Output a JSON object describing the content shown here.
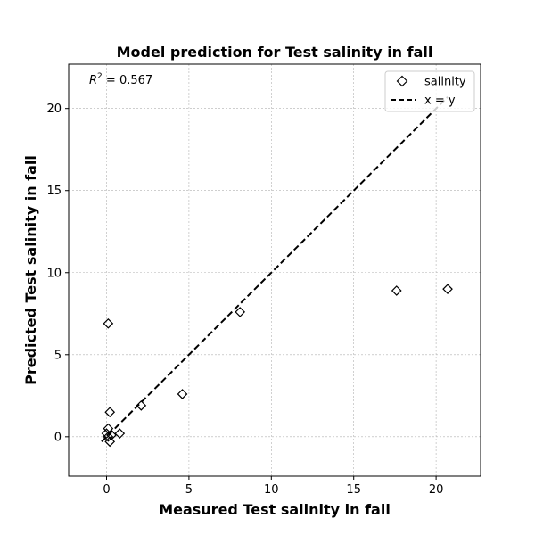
{
  "chart_data": {
    "type": "scatter",
    "title": "Model prediction for Test salinity in fall",
    "xlabel": "Measured Test salinity in fall",
    "ylabel": "Predicted Test salinity in fall",
    "xlim": [
      -2.3,
      22.7
    ],
    "ylim": [
      -2.4,
      22.7
    ],
    "xticks": [
      0,
      5,
      10,
      15,
      20
    ],
    "yticks": [
      0,
      5,
      10,
      15,
      20
    ],
    "grid": true,
    "legend_position": "top-right",
    "annotation": {
      "prefix": "R",
      "superscript": "2",
      "suffix": " = 0.567"
    },
    "series": [
      {
        "name": "salinity",
        "marker": "diamond",
        "color": "#000000",
        "points": [
          {
            "x": 0.0,
            "y": 0.2
          },
          {
            "x": 0.1,
            "y": 0.0
          },
          {
            "x": 0.2,
            "y": -0.3
          },
          {
            "x": 0.1,
            "y": 0.5
          },
          {
            "x": 0.2,
            "y": 1.5
          },
          {
            "x": 0.1,
            "y": 6.9
          },
          {
            "x": 0.3,
            "y": 0.1
          },
          {
            "x": 0.8,
            "y": 0.2
          },
          {
            "x": 2.1,
            "y": 1.9
          },
          {
            "x": 4.6,
            "y": 2.6
          },
          {
            "x": 8.1,
            "y": 7.6
          },
          {
            "x": 17.6,
            "y": 8.9
          },
          {
            "x": 20.7,
            "y": 9.0
          }
        ]
      },
      {
        "name": "x = y",
        "style": "dashed",
        "color": "#000000",
        "line": [
          [
            -0.3,
            -0.3
          ],
          [
            20.7,
            20.7
          ]
        ]
      }
    ]
  }
}
